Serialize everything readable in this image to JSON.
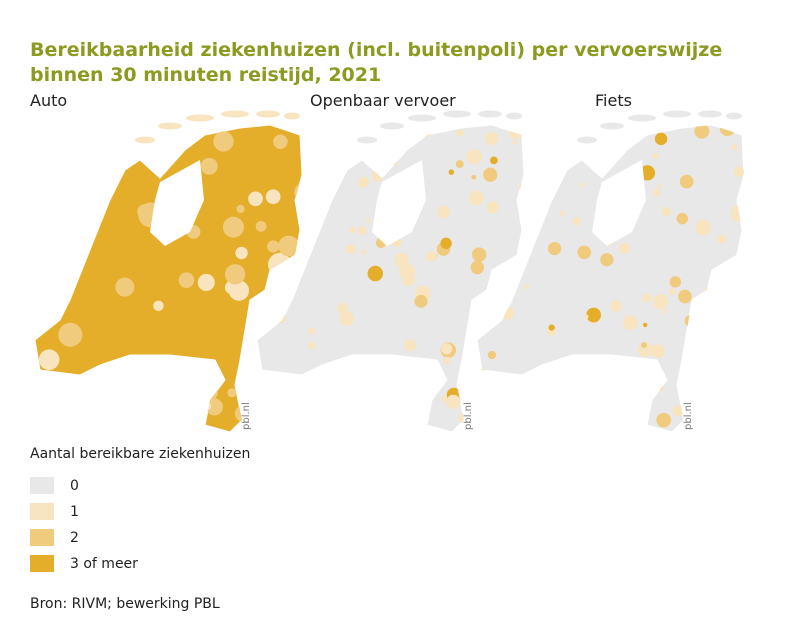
{
  "title": "Bereikbaarheid ziekenhuizen (incl. buitenpoli) per vervoerswijze binnen 30 minuten reistijd, 2021",
  "maps": [
    {
      "label": "Auto",
      "credit": "pbl.nl",
      "dominant_class": 3
    },
    {
      "label": "Openbaar vervoer",
      "credit": "pbl.nl",
      "dominant_class": 0
    },
    {
      "label": "Fiets",
      "credit": "pbl.nl",
      "dominant_class": 0
    }
  ],
  "legend": {
    "title": "Aantal bereikbare ziekenhuizen",
    "items": [
      {
        "label": "0",
        "color": "#e8e8e8"
      },
      {
        "label": "1",
        "color": "#f8e4bf"
      },
      {
        "label": "2",
        "color": "#f0cb7e"
      },
      {
        "label": "3 of meer",
        "color": "#e4ad2a"
      }
    ]
  },
  "source": "Bron: RIVM; bewerking PBL"
}
